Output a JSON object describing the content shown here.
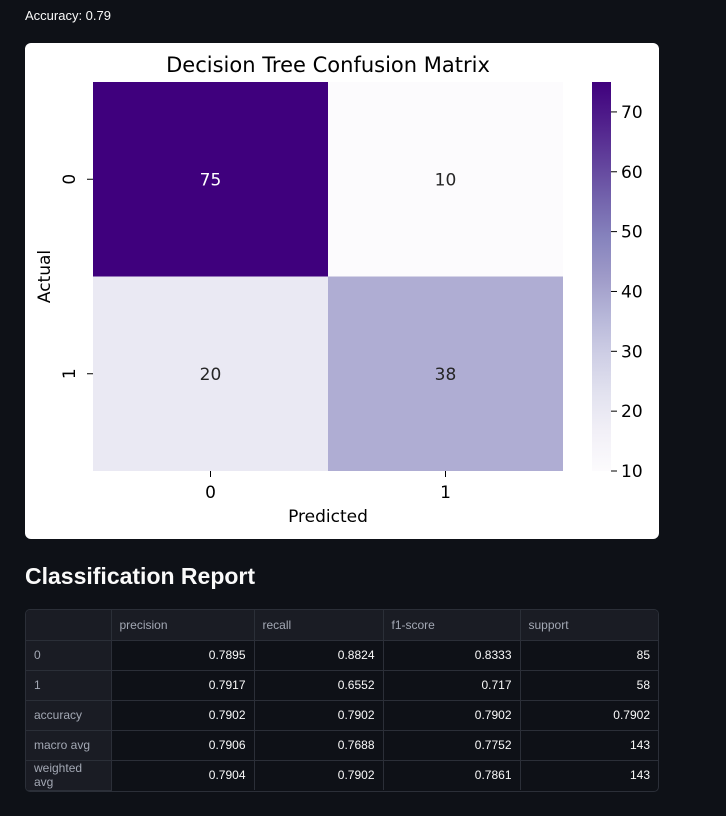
{
  "accuracy_text": "Accuracy: 0.79",
  "section_title": "Classification Report",
  "chart_data": {
    "type": "heatmap",
    "title": "Decision Tree Confusion Matrix",
    "xlabel": "Predicted",
    "ylabel": "Actual",
    "x_categories": [
      "0",
      "1"
    ],
    "y_categories": [
      "0",
      "1"
    ],
    "values": [
      [
        75,
        10
      ],
      [
        20,
        38
      ]
    ],
    "colorbar": {
      "ticks": [
        "10",
        "20",
        "30",
        "40",
        "50",
        "60",
        "70"
      ],
      "range": [
        10,
        75
      ],
      "colormap": "Purples",
      "low_color": "#fcfbfd",
      "high_color": "#3f007d"
    }
  },
  "report": {
    "columns": [
      "",
      "precision",
      "recall",
      "f1-score",
      "support"
    ],
    "rows": [
      {
        "label": "0",
        "values": [
          "0.7895",
          "0.8824",
          "0.8333",
          "85"
        ]
      },
      {
        "label": "1",
        "values": [
          "0.7917",
          "0.6552",
          "0.717",
          "58"
        ]
      },
      {
        "label": "accuracy",
        "values": [
          "0.7902",
          "0.7902",
          "0.7902",
          "0.7902"
        ]
      },
      {
        "label": "macro avg",
        "values": [
          "0.7906",
          "0.7688",
          "0.7752",
          "143"
        ]
      },
      {
        "label": "weighted avg",
        "values": [
          "0.7904",
          "0.7902",
          "0.7861",
          "143"
        ]
      }
    ]
  }
}
